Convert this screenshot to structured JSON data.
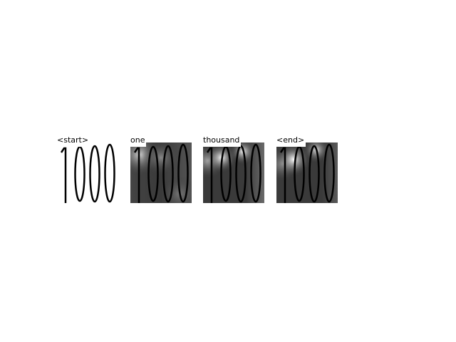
{
  "digits": "1000",
  "panels": [
    {
      "label": "<start>",
      "kind": "input"
    },
    {
      "label": "one",
      "kind": "attention"
    },
    {
      "label": "thousand",
      "kind": "attention"
    },
    {
      "label": "<end>",
      "kind": "attention"
    }
  ],
  "colors": {
    "background": "#ffffff",
    "ink": "#000000",
    "attention_low": "#333333",
    "attention_high": "#ffffff"
  }
}
